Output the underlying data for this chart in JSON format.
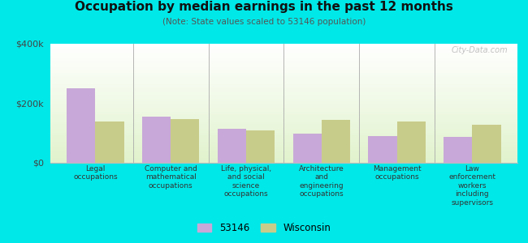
{
  "title": "Occupation by median earnings in the past 12 months",
  "subtitle": "(Note: State values scaled to 53146 population)",
  "categories": [
    "Legal\noccupations",
    "Computer and\nmathematical\noccupations",
    "Life, physical,\nand social\nscience\noccupations",
    "Architecture\nand\nengineering\noccupations",
    "Management\noccupations",
    "Law\nenforcement\nworkers\nincluding\nsupervisors"
  ],
  "values_53146": [
    250000,
    155000,
    115000,
    97000,
    90000,
    88000
  ],
  "values_wisconsin": [
    140000,
    148000,
    108000,
    143000,
    138000,
    128000
  ],
  "color_53146": "#c8a8d8",
  "color_wisconsin": "#c8cc8a",
  "ylim": [
    0,
    400000
  ],
  "yticks": [
    0,
    200000,
    400000
  ],
  "ytick_labels": [
    "$0",
    "$200k",
    "$400k"
  ],
  "outer_bg": "#00e8e8",
  "bar_width": 0.38,
  "legend_label_53146": "53146",
  "legend_label_wisconsin": "Wisconsin",
  "watermark": "City-Data.com"
}
